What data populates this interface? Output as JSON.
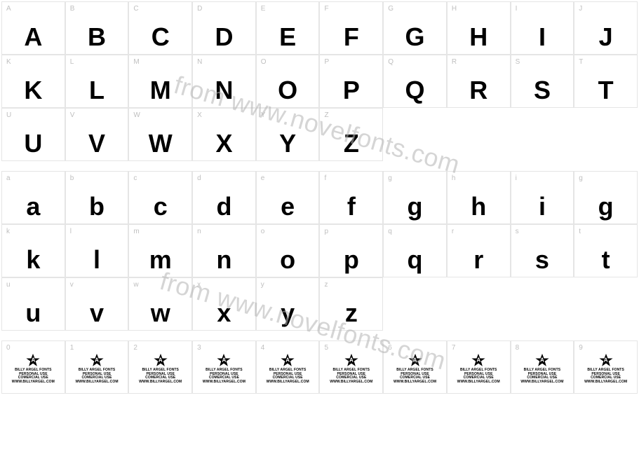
{
  "watermark_text": "from www.novelfonts.com",
  "watermark_color": "#b3b3b3",
  "cell_border": "#e5e5e5",
  "label_color": "#bfbfbf",
  "glyph_color": "#000000",
  "background": "#ffffff",
  "uppercase": {
    "labels": [
      "A",
      "B",
      "C",
      "D",
      "E",
      "F",
      "G",
      "H",
      "I",
      "J",
      "K",
      "L",
      "M",
      "N",
      "O",
      "P",
      "Q",
      "R",
      "S",
      "T",
      "U",
      "V",
      "W",
      "X",
      "Y",
      "Z"
    ],
    "glyphs": [
      "A",
      "B",
      "C",
      "D",
      "E",
      "F",
      "G",
      "H",
      "I",
      "J",
      "K",
      "L",
      "M",
      "N",
      "O",
      "P",
      "Q",
      "R",
      "S",
      "T",
      "U",
      "V",
      "W",
      "X",
      "Y",
      "Z"
    ]
  },
  "lowercase": {
    "labels": [
      "a",
      "b",
      "c",
      "d",
      "e",
      "f",
      "g",
      "h",
      "i",
      "g",
      "k",
      "l",
      "m",
      "n",
      "o",
      "p",
      "q",
      "r",
      "s",
      "t",
      "u",
      "v",
      "w",
      "x",
      "y",
      "z"
    ],
    "glyphs": [
      "a",
      "b",
      "c",
      "d",
      "e",
      "f",
      "g",
      "h",
      "i",
      "g",
      "k",
      "l",
      "m",
      "n",
      "o",
      "p",
      "q",
      "r",
      "s",
      "t",
      "u",
      "v",
      "w",
      "x",
      "y",
      "z"
    ]
  },
  "digits": {
    "labels": [
      "0",
      "1",
      "2",
      "3",
      "4",
      "5",
      "6",
      "7",
      "8",
      "9"
    ],
    "star_letter": "A",
    "lines": [
      "BILLY ARGEL FONTS",
      "PERSONAL USE",
      "COMERCIAL USE",
      "WWW.BILLYARGEL.COM"
    ]
  }
}
